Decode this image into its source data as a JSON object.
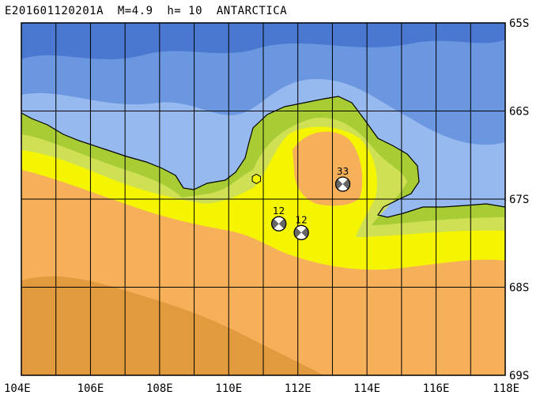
{
  "title": "E201601120201A  M=4.9  h= 10  ANTARCTICA",
  "map": {
    "lon_min": 104,
    "lon_max": 118,
    "lat_min": -69,
    "lat_max": -65,
    "lon_ticks": [
      {
        "value": 104,
        "label": "104E"
      },
      {
        "value": 106,
        "label": "106E"
      },
      {
        "value": 108,
        "label": "108E"
      },
      {
        "value": 110,
        "label": "110E"
      },
      {
        "value": 112,
        "label": "112E"
      },
      {
        "value": 114,
        "label": "114E"
      },
      {
        "value": 116,
        "label": "116E"
      },
      {
        "value": 118,
        "label": "118E"
      }
    ],
    "lat_ticks": [
      {
        "value": -65,
        "label": "65S"
      },
      {
        "value": -66,
        "label": "66S"
      },
      {
        "value": -67,
        "label": "67S"
      },
      {
        "value": -68,
        "label": "68S"
      },
      {
        "value": -69,
        "label": "69S"
      }
    ],
    "grid_lon_step": 1,
    "grid_lat_step": 1,
    "colors": {
      "deep_ocean": "#4a78d0",
      "ocean": "#6b96e0",
      "shelf": "#96b9ef",
      "coast_green": "#a8cc33",
      "coast_green_light": "#cfe055",
      "yellow": "#f5f500",
      "orange": "#f7b05a",
      "dark_orange": "#e19a3e",
      "grid": "#000000"
    }
  },
  "events": [
    {
      "lon": 113.3,
      "lat": -66.83,
      "depth_label": "33"
    },
    {
      "lon": 111.45,
      "lat": -67.28,
      "depth_label": "12"
    },
    {
      "lon": 112.1,
      "lat": -67.38,
      "depth_label": "12"
    }
  ],
  "epicenter": {
    "lon": 110.8,
    "lat": -66.77,
    "symbol": "hexagon-icon"
  }
}
